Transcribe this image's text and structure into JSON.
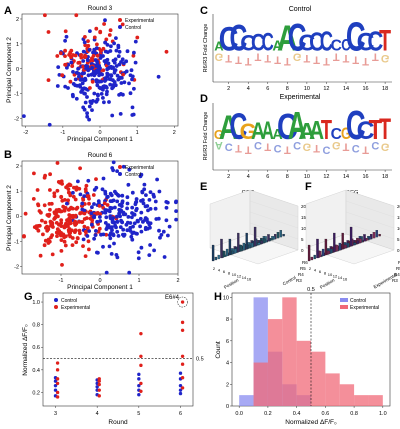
{
  "panel_letters": [
    "A",
    "B",
    "C",
    "D",
    "E",
    "F",
    "G",
    "H"
  ],
  "colors": {
    "experimental": "#e0201b",
    "control": "#1f24c9",
    "hist_control": "#8a8cf0",
    "hist_experimental": "#f06a78"
  },
  "chart_data": [
    {
      "id": "A",
      "type": "scatter",
      "title": "Round 3",
      "xlabel": "Principal Component 1",
      "ylabel": "Principal Component 2",
      "xlim": [
        -2.1,
        2.1
      ],
      "ylim": [
        -2.3,
        2.2
      ],
      "xticks": [
        "-2",
        "-1",
        "0",
        "1",
        "2"
      ],
      "yticks": [
        "-2",
        "-1",
        "0",
        "1",
        "2"
      ],
      "legend": [
        "Experimental",
        "Control"
      ],
      "series": [
        {
          "name": "Experimental",
          "center": [
            -0.35,
            0.45
          ],
          "spread": [
            0.55,
            0.6
          ],
          "count": 100
        },
        {
          "name": "Control",
          "center": [
            0.0,
            -0.2
          ],
          "spread": [
            0.5,
            0.7
          ],
          "count": 240
        }
      ]
    },
    {
      "id": "B",
      "type": "scatter",
      "title": "Round 6",
      "xlabel": "Principal Component 1",
      "ylabel": "Principal Component 2",
      "xlim": [
        -2.0,
        2.0
      ],
      "ylim": [
        -2.3,
        2.2
      ],
      "xticks": [
        "-1",
        "0",
        "1",
        "2"
      ],
      "yticks": [
        "-2",
        "-1",
        "0",
        "1",
        "2"
      ],
      "legend": [
        "Experimental",
        "Control"
      ],
      "series": [
        {
          "name": "Experimental",
          "center": [
            -0.8,
            0.0
          ],
          "spread": [
            0.45,
            0.7
          ],
          "count": 230
        },
        {
          "name": "Control",
          "center": [
            0.55,
            0.1
          ],
          "spread": [
            0.6,
            0.8
          ],
          "count": 230
        }
      ]
    },
    {
      "id": "C",
      "type": "sequence-logo",
      "title": "Control",
      "ylabel": "R6/R3 Fold Change",
      "xticks": [
        "2",
        "4",
        "6",
        "8",
        "10",
        "12",
        "14",
        "16",
        "18"
      ],
      "top_letters": [
        "A",
        "C",
        "C",
        "C",
        "C",
        "C",
        "A",
        "A",
        "C",
        "C",
        "C",
        "C",
        "C",
        "C",
        "C",
        "C",
        "C",
        "T"
      ],
      "bottom_letters": [
        "G",
        "T",
        "T",
        "T",
        "T",
        "T",
        "T",
        "T",
        "G",
        "T",
        "T",
        "T",
        "T",
        "T",
        "T",
        "T",
        "T",
        "G"
      ]
    },
    {
      "id": "D",
      "type": "sequence-logo",
      "title": "Experimental",
      "ylabel": "R6/R3 Fold Change",
      "xticks": [
        "2",
        "4",
        "6",
        "8",
        "10",
        "12",
        "14",
        "16",
        "18"
      ],
      "top_letters": [
        "G",
        "A",
        "C",
        "G",
        "A",
        "A",
        "A",
        "C",
        "A",
        "A",
        "A",
        "T",
        "C",
        "G",
        "C",
        "C",
        "T",
        "T"
      ],
      "bottom_letters": [
        "A",
        "C",
        "T",
        "T",
        "C",
        "T",
        "C",
        "T",
        "C",
        "G",
        "T",
        "C",
        "G",
        "T",
        "C",
        "T",
        "C",
        "G"
      ]
    },
    {
      "id": "E",
      "type": "bar3d",
      "title": "GGG",
      "zlabel": "Count",
      "xlabel": "Position",
      "zticks": [
        "0",
        "5",
        "10",
        "15",
        "20"
      ],
      "rounds": [
        "R6",
        "R5",
        "R4",
        "R3"
      ],
      "round_axis_label": "Control",
      "xtick_labels": [
        "2",
        "4",
        "6",
        "8",
        "10",
        "12",
        "14",
        "16"
      ]
    },
    {
      "id": "F",
      "type": "bar3d",
      "title": "GGG",
      "zlabel": "Count",
      "xlabel": "Position",
      "zticks": [
        "0",
        "5",
        "10",
        "15",
        "20"
      ],
      "rounds": [
        "R6",
        "R5",
        "R4",
        "R3"
      ],
      "round_axis_label": "Experimental",
      "xtick_labels": [
        "2",
        "4",
        "6",
        "8",
        "10",
        "12",
        "14",
        "16"
      ]
    },
    {
      "id": "G",
      "type": "scatter",
      "xlabel": "Round",
      "ylabel": "Normalized ΔF/F₀",
      "xlim": [
        2.7,
        6.3
      ],
      "ylim": [
        0.08,
        1.08
      ],
      "xticks": [
        "3",
        "4",
        "5",
        "6"
      ],
      "yticks": [
        "0.2",
        "0.4",
        "0.6",
        "0.8",
        "1.0"
      ],
      "legend": [
        "Control",
        "Experimental"
      ],
      "annotation": "E6#4",
      "threshold": 0.5,
      "threshold_label": "0.5",
      "series": [
        {
          "name": "Control",
          "x": [
            3,
            3,
            3,
            3,
            3,
            4,
            4,
            4,
            4,
            4,
            5,
            5,
            5,
            5,
            5,
            6,
            6,
            6,
            6,
            6
          ],
          "y": [
            0.17,
            0.22,
            0.26,
            0.3,
            0.33,
            0.18,
            0.22,
            0.25,
            0.28,
            0.31,
            0.18,
            0.22,
            0.26,
            0.32,
            0.36,
            0.19,
            0.22,
            0.26,
            0.32,
            0.37
          ]
        },
        {
          "name": "Experimental",
          "x": [
            3,
            3,
            3,
            3,
            3,
            3,
            4,
            4,
            4,
            4,
            4,
            5,
            5,
            5,
            5,
            5,
            6,
            6,
            6,
            6,
            6,
            6,
            6
          ],
          "y": [
            0.16,
            0.2,
            0.28,
            0.32,
            0.4,
            0.46,
            0.17,
            0.22,
            0.27,
            0.3,
            0.32,
            0.21,
            0.28,
            0.44,
            0.52,
            0.72,
            0.24,
            0.33,
            0.45,
            0.52,
            0.75,
            0.82,
            1.0
          ]
        }
      ]
    },
    {
      "id": "H",
      "type": "histogram",
      "xlabel": "Normalized ΔF/F₀",
      "ylabel": "Count",
      "xlim": [
        -0.05,
        1.05
      ],
      "ylim": [
        0,
        10.4
      ],
      "xticks": [
        "0.0",
        "0.2",
        "0.4",
        "0.6",
        "0.8",
        "1.0"
      ],
      "yticks": [
        "0",
        "2",
        "4",
        "6",
        "8",
        "10"
      ],
      "threshold": 0.5,
      "threshold_label": "0.5",
      "legend": [
        "Control",
        "Experimental"
      ],
      "bins": [
        0.0,
        0.1,
        0.2,
        0.3,
        0.4,
        0.5,
        0.6,
        0.7,
        0.8,
        0.9,
        1.0
      ],
      "series": [
        {
          "name": "Control",
          "counts": [
            1,
            10,
            5,
            2,
            1,
            0,
            0,
            0,
            0,
            0
          ]
        },
        {
          "name": "Experimental",
          "counts": [
            0,
            4,
            8,
            10,
            6,
            5,
            3,
            2,
            1,
            1
          ]
        }
      ]
    }
  ]
}
